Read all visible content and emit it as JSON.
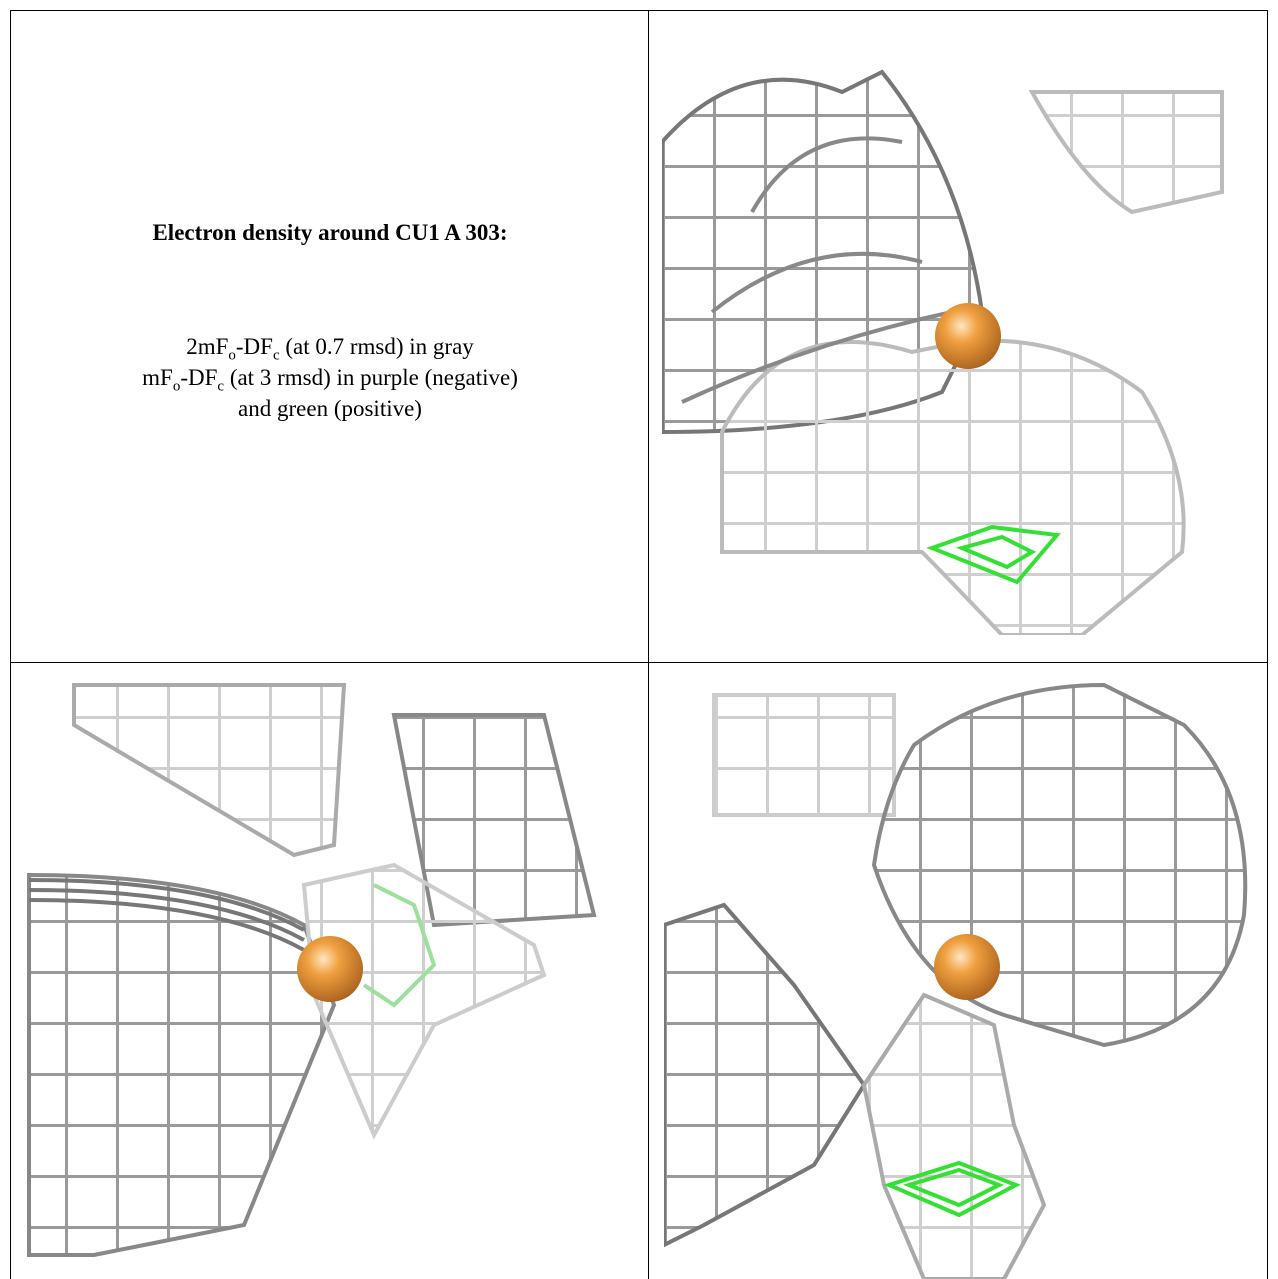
{
  "caption": {
    "title": "Electron density around CU1 A 303:",
    "lines": [
      [
        {
          "text": "2mF"
        },
        {
          "sub": "o"
        },
        {
          "text": "-DF"
        },
        {
          "sub": "c"
        },
        {
          "text": " (at 0.7 rmsd) in gray"
        }
      ],
      [
        {
          "text": "mF"
        },
        {
          "sub": "o"
        },
        {
          "text": "-DF"
        },
        {
          "sub": "c"
        },
        {
          "text": " (at 3 rmsd) in purple (negative)"
        }
      ],
      [
        {
          "text": "and green (positive)"
        }
      ]
    ]
  }
}
